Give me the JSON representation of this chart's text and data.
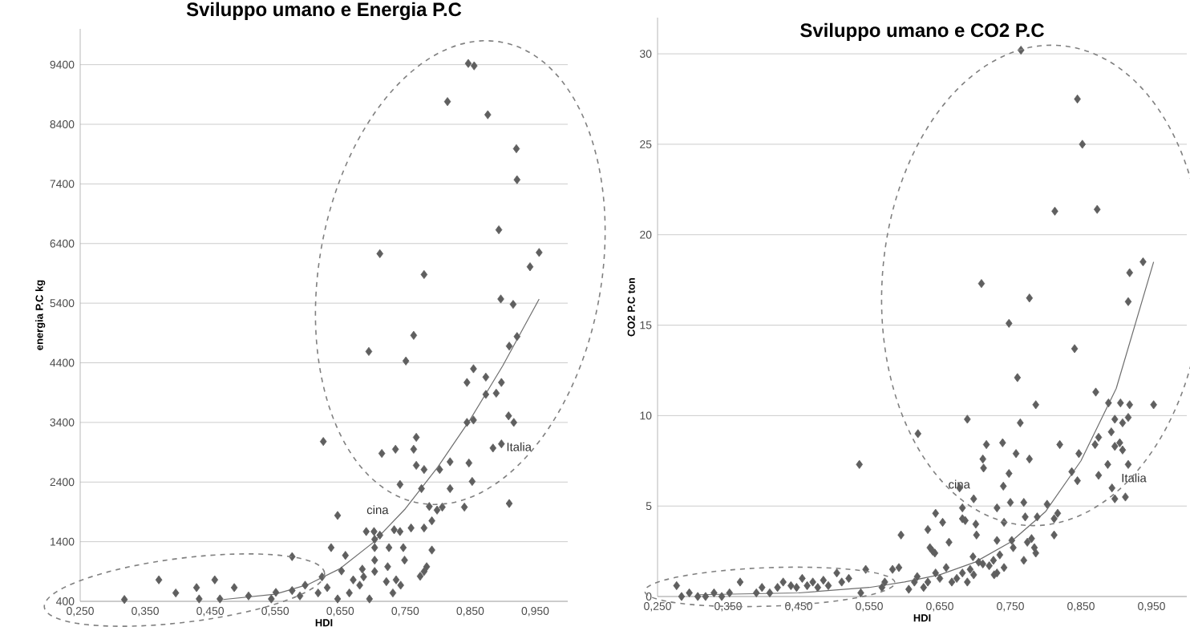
{
  "chart_data": [
    {
      "type": "scatter",
      "title": "Sviluppo umano e Energia P.C",
      "xlabel": "HDI",
      "ylabel": "energia P.C kg",
      "grid": "y",
      "xlim": [
        0.25,
        1.0
      ],
      "ylim": [
        400,
        10000
      ],
      "xticks": [
        {
          "value": 0.25,
          "label": "0,250"
        },
        {
          "value": 0.35,
          "label": "0,350"
        },
        {
          "value": 0.45,
          "label": "0,450"
        },
        {
          "value": 0.55,
          "label": "0,550"
        },
        {
          "value": 0.65,
          "label": "0,650"
        },
        {
          "value": 0.75,
          "label": "0,750"
        },
        {
          "value": 0.85,
          "label": "0,850"
        },
        {
          "value": 0.95,
          "label": "0,950"
        }
      ],
      "yticks": [
        400,
        1400,
        2400,
        3400,
        4400,
        5400,
        6400,
        7400,
        8400,
        9400
      ],
      "annotations": [
        "cina",
        "Italia"
      ],
      "series": [
        {
          "type": "scatter",
          "color": "#5f5f5f",
          "marker": "diamond",
          "x": [
            0.847,
            0.856,
            0.815,
            0.877,
            0.921,
            0.922,
            0.894,
            0.711,
            0.956,
            0.942,
            0.779,
            0.897,
            0.916,
            0.763,
            0.694,
            0.751,
            0.91,
            0.922,
            0.855,
            0.845,
            0.874,
            0.898,
            0.874,
            0.89,
            0.845,
            0.855,
            0.909,
            0.917,
            0.767,
            0.763,
            0.735,
            0.714,
            0.624,
            0.885,
            0.898,
            0.767,
            0.779,
            0.819,
            0.803,
            0.848,
            0.853,
            0.742,
            0.775,
            0.819,
            0.646,
            0.807,
            0.841,
            0.91,
            0.787,
            0.791,
            0.799,
            0.779,
            0.759,
            0.711,
            0.69,
            0.702,
            0.733,
            0.742,
            0.703,
            0.636,
            0.703,
            0.725,
            0.747,
            0.791,
            0.658,
            0.576,
            0.703,
            0.723,
            0.749,
            0.783,
            0.779,
            0.773,
            0.652,
            0.703,
            0.721,
            0.743,
            0.736,
            0.67,
            0.68,
            0.686,
            0.622,
            0.63,
            0.596,
            0.576,
            0.588,
            0.551,
            0.544,
            0.616,
            0.646,
            0.695,
            0.731,
            0.509,
            0.487,
            0.457,
            0.465,
            0.429,
            0.433,
            0.397,
            0.371,
            0.318,
            0.664,
            0.684
          ],
          "values": [
            9420,
            9380,
            8780,
            8560,
            7990,
            7470,
            6630,
            6230,
            6250,
            6010,
            5880,
            5470,
            5380,
            4860,
            4590,
            4430,
            4680,
            4840,
            4300,
            4070,
            4160,
            4070,
            3870,
            3890,
            3400,
            3440,
            3510,
            3400,
            3150,
            2950,
            2950,
            2880,
            3080,
            2970,
            3040,
            2680,
            2610,
            2740,
            2610,
            2720,
            2410,
            2360,
            2290,
            2290,
            1840,
            1980,
            1980,
            2040,
            1990,
            1750,
            1930,
            1630,
            1630,
            1510,
            1570,
            1570,
            1600,
            1570,
            1440,
            1300,
            1300,
            1300,
            1300,
            1260,
            1170,
            1150,
            1090,
            980,
            1090,
            980,
            900,
            820,
            910,
            900,
            730,
            670,
            760,
            760,
            670,
            810,
            810,
            630,
            670,
            580,
            490,
            550,
            440,
            540,
            440,
            440,
            540,
            490,
            630,
            760,
            440,
            630,
            440,
            540,
            760,
            430,
            540,
            940
          ]
        },
        {
          "type": "line",
          "color": "#6e6e6e",
          "marker": "none",
          "x": [
            0.47,
            0.55,
            0.6,
            0.65,
            0.7,
            0.75,
            0.8,
            0.85,
            0.9,
            0.956
          ],
          "values": [
            430,
            520,
            680,
            950,
            1380,
            1950,
            2650,
            3450,
            4350,
            5470
          ]
        }
      ]
    },
    {
      "type": "scatter",
      "title": "Sviluppo umano e CO2 P.C",
      "xlabel": "HDI",
      "ylabel": "CO2 P.C ton",
      "grid": "y",
      "xlim": [
        0.25,
        1.0
      ],
      "ylim": [
        0,
        32
      ],
      "xticks": [
        {
          "value": 0.25,
          "label": "0,250"
        },
        {
          "value": 0.35,
          "label": "0,350"
        },
        {
          "value": 0.45,
          "label": "0,450"
        },
        {
          "value": 0.55,
          "label": "0,550"
        },
        {
          "value": 0.65,
          "label": "0,650"
        },
        {
          "value": 0.75,
          "label": "0,750"
        },
        {
          "value": 0.85,
          "label": "0,850"
        },
        {
          "value": 0.95,
          "label": "0,950"
        }
      ],
      "yticks": [
        0,
        5,
        10,
        15,
        20,
        25,
        30
      ],
      "annotations": [
        "cina",
        "Italia"
      ],
      "series": [
        {
          "type": "scatter",
          "color": "#5f5f5f",
          "marker": "diamond",
          "x": [
            0.765,
            0.845,
            0.852,
            0.813,
            0.873,
            0.709,
            0.777,
            0.919,
            0.938,
            0.917,
            0.748,
            0.841,
            0.76,
            0.871,
            0.764,
            0.786,
            0.689,
            0.619,
            0.536,
            0.739,
            0.777,
            0.758,
            0.716,
            0.712,
            0.74,
            0.711,
            0.82,
            0.847,
            0.837,
            0.845,
            0.889,
            0.906,
            0.919,
            0.917,
            0.909,
            0.898,
            0.893,
            0.905,
            0.898,
            0.909,
            0.917,
            0.875,
            0.87,
            0.953,
            0.875,
            0.888,
            0.894,
            0.898,
            0.913,
            0.678,
            0.682,
            0.682,
            0.698,
            0.686,
            0.701,
            0.702,
            0.644,
            0.654,
            0.633,
            0.663,
            0.636,
            0.64,
            0.643,
            0.595,
            0.731,
            0.741,
            0.731,
            0.75,
            0.769,
            0.771,
            0.788,
            0.802,
            0.817,
            0.812,
            0.812,
            0.748,
            0.78,
            0.774,
            0.784,
            0.786,
            0.769,
            0.752,
            0.754,
            0.735,
            0.726,
            0.731,
            0.741,
            0.727,
            0.697,
            0.705,
            0.693,
            0.682,
            0.674,
            0.689,
            0.698,
            0.72,
            0.711,
            0.659,
            0.667,
            0.65,
            0.644,
            0.633,
            0.627,
            0.614,
            0.606,
            0.618,
            0.583,
            0.592,
            0.572,
            0.545,
            0.568,
            0.538,
            0.521,
            0.511,
            0.504,
            0.492,
            0.485,
            0.477,
            0.47,
            0.462,
            0.455,
            0.447,
            0.439,
            0.428,
            0.42,
            0.409,
            0.398,
            0.39,
            0.367,
            0.352,
            0.341,
            0.33,
            0.318,
            0.307,
            0.295,
            0.284,
            0.277
          ],
          "values": [
            30.2,
            27.5,
            25.0,
            21.3,
            21.4,
            17.3,
            16.5,
            17.9,
            18.5,
            16.3,
            15.1,
            13.7,
            12.1,
            11.3,
            9.6,
            10.6,
            9.8,
            9.0,
            7.3,
            8.5,
            7.6,
            7.9,
            8.4,
            7.1,
            6.1,
            7.6,
            8.4,
            7.9,
            6.9,
            6.4,
            10.7,
            10.7,
            10.6,
            9.9,
            9.6,
            9.8,
            9.1,
            8.5,
            8.3,
            8.1,
            7.3,
            8.8,
            8.4,
            10.6,
            6.7,
            7.3,
            6.0,
            5.4,
            5.5,
            6.0,
            4.9,
            4.3,
            5.4,
            4.2,
            4.0,
            3.4,
            4.6,
            4.1,
            3.7,
            3.0,
            2.7,
            2.5,
            2.4,
            3.4,
            4.9,
            4.1,
            3.1,
            5.2,
            5.2,
            4.4,
            4.4,
            5.1,
            4.6,
            4.3,
            3.4,
            6.8,
            3.2,
            3.0,
            2.7,
            2.4,
            2.0,
            3.1,
            2.7,
            2.3,
            2.0,
            1.3,
            1.6,
            1.2,
            2.2,
            1.9,
            1.5,
            1.3,
            1.0,
            0.8,
            1.2,
            1.7,
            1.8,
            1.6,
            0.8,
            1.0,
            1.3,
            0.8,
            0.5,
            0.8,
            0.4,
            1.1,
            1.5,
            1.6,
            0.8,
            1.5,
            0.5,
            0.2,
            1.0,
            0.8,
            1.3,
            0.6,
            0.9,
            0.5,
            0.8,
            0.6,
            1.0,
            0.5,
            0.6,
            0.8,
            0.5,
            0.2,
            0.5,
            0.2,
            0.8,
            0.2,
            0.0,
            0.2,
            0.0,
            0.0,
            0.2,
            0.0,
            0.6
          ]
        },
        {
          "type": "line",
          "color": "#6e6e6e",
          "marker": "none",
          "x": [
            0.31,
            0.45,
            0.55,
            0.6,
            0.65,
            0.7,
            0.75,
            0.8,
            0.85,
            0.9,
            0.953
          ],
          "values": [
            0.1,
            0.2,
            0.5,
            0.8,
            1.2,
            1.9,
            3.0,
            4.7,
            7.5,
            11.5,
            18.5
          ]
        }
      ]
    }
  ]
}
